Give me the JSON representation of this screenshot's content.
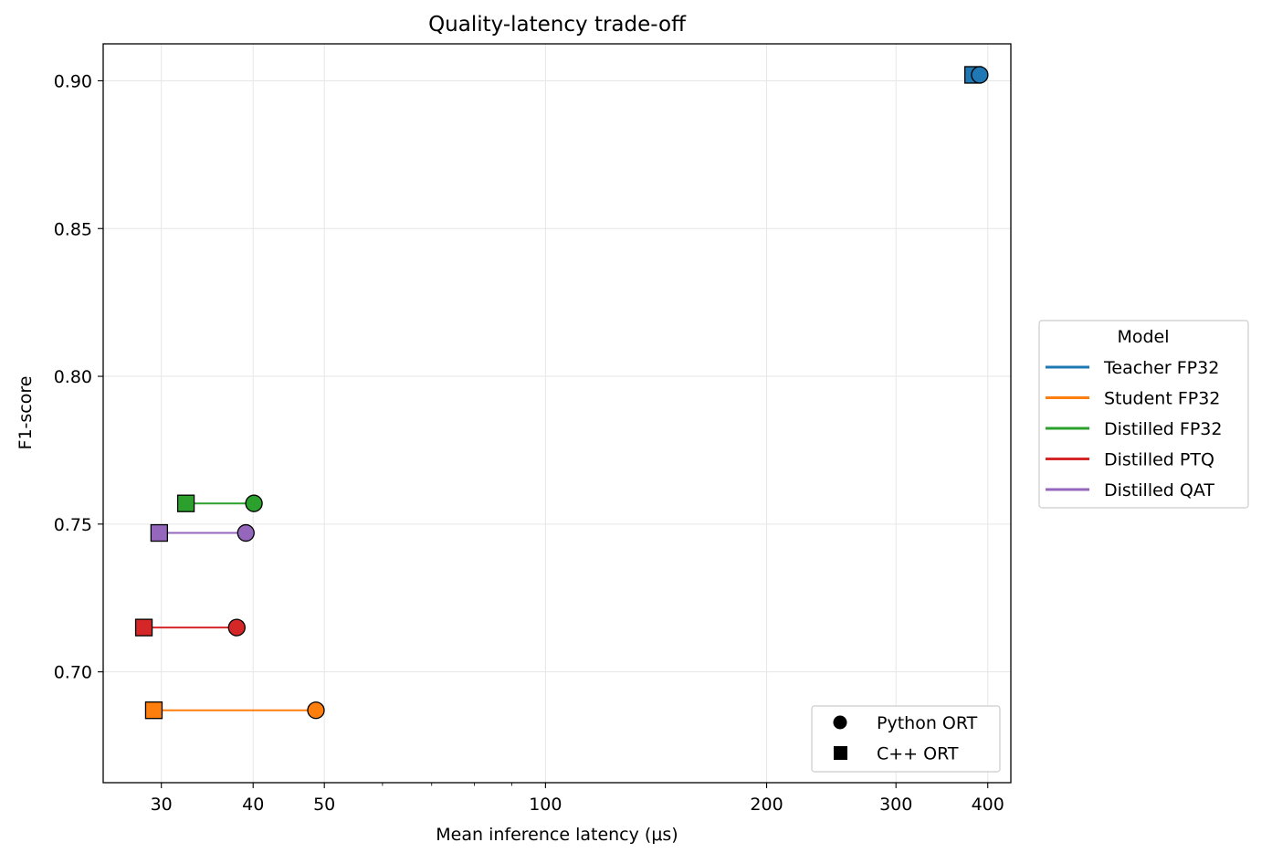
{
  "chart_data": {
    "type": "scatter",
    "title": "Quality-latency trade-off",
    "xlabel": "Mean inference latency (μs)",
    "ylabel": "F1-score",
    "xscale": "log",
    "xlim": [
      25,
      430
    ],
    "ylim": [
      0.6625,
      0.9125
    ],
    "xticks": [
      30,
      40,
      50,
      100,
      200,
      300,
      400
    ],
    "xtick_labels": [
      "30",
      "40",
      "50",
      "100",
      "200",
      "300",
      "400"
    ],
    "yticks": [
      0.7,
      0.75,
      0.8,
      0.85,
      0.9
    ],
    "ytick_labels": [
      "0.70",
      "0.75",
      "0.80",
      "0.85",
      "0.90"
    ],
    "grid": true,
    "series": [
      {
        "name": "Teacher FP32",
        "color": "#1f77b4",
        "python_ort": [
          390,
          0.902
        ],
        "cpp_ort": [
          382,
          0.902
        ]
      },
      {
        "name": "Student FP32",
        "color": "#ff7f0e",
        "python_ort": [
          48.7,
          0.687
        ],
        "cpp_ort": [
          29.3,
          0.687
        ]
      },
      {
        "name": "Distilled FP32",
        "color": "#2ca02c",
        "python_ort": [
          40.1,
          0.757
        ],
        "cpp_ort": [
          32.4,
          0.757
        ]
      },
      {
        "name": "Distilled PTQ",
        "color": "#d62728",
        "python_ort": [
          38.0,
          0.715
        ],
        "cpp_ort": [
          28.4,
          0.715
        ]
      },
      {
        "name": "Distilled QAT",
        "color": "#9467bd",
        "python_ort": [
          39.1,
          0.747
        ],
        "cpp_ort": [
          29.8,
          0.747
        ]
      }
    ],
    "legend_model": {
      "title": "Model",
      "placement": "right"
    },
    "legend_marker": {
      "placement": "lower-right",
      "entries": [
        {
          "marker": "circle",
          "label": "Python ORT"
        },
        {
          "marker": "square",
          "label": "C++ ORT"
        }
      ]
    }
  }
}
